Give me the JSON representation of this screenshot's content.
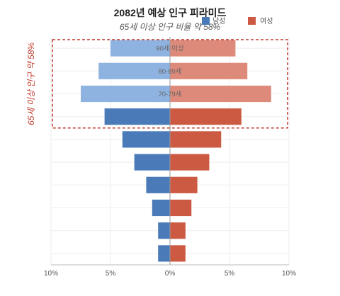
{
  "chart_data": {
    "type": "bar",
    "orientation": "horizontal-diverging",
    "title": "2082년 예상 인구 피라미드",
    "subtitle": "65세 이상 인구 비율 약 58%",
    "categories": [
      "90세 이상",
      "80-89세",
      "70-79세",
      "",
      "",
      "",
      "",
      "",
      "",
      ""
    ],
    "series": [
      {
        "name": "남성",
        "values": [
          5,
          6,
          7.5,
          5.5,
          4,
          3,
          2,
          1.5,
          1,
          1
        ],
        "color": "#4a7ab8",
        "highlight_color": "#8fb3e0"
      },
      {
        "name": "여성",
        "values": [
          5.5,
          6.5,
          8.5,
          6,
          4.3,
          3.3,
          2.3,
          1.8,
          1.3,
          1.3
        ],
        "color": "#cc5a43",
        "highlight_color": "#de8a7a"
      }
    ],
    "highlighted_count": 3,
    "xlim": [
      -10,
      10
    ],
    "x_ticks": [
      -10,
      -5,
      0,
      5,
      10
    ],
    "x_tick_labels": [
      "10%",
      "5%",
      "0%",
      "5%",
      "10%"
    ],
    "annotation": "65세 이상 인구 약 58%",
    "annotation_color": "#c0392b",
    "legend_position": "top-right",
    "grid": true
  }
}
